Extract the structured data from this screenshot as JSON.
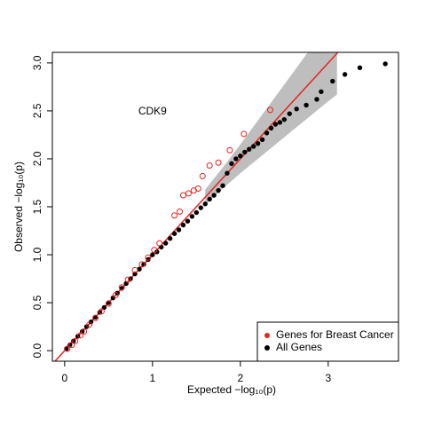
{
  "chart_data": {
    "type": "scatter",
    "xlabel": "Expected  −log₁₀(p)",
    "ylabel": "Observed  −log₁₀(p)",
    "annotation": {
      "text": "CDK9",
      "x": 1.0,
      "y": 2.49
    },
    "xlim": [
      -0.14,
      3.8
    ],
    "ylim": [
      -0.11,
      3.11
    ],
    "xticks": [
      0,
      1,
      2,
      3
    ],
    "yticks": [
      {
        "value": 0,
        "label": "0.0"
      },
      0.5,
      {
        "value": 1,
        "label": "1.0"
      },
      1.5,
      {
        "value": 2,
        "label": "2.0"
      },
      2.5,
      {
        "value": 3,
        "label": "3.0"
      }
    ],
    "legend": "bottom-right",
    "reference_line": {
      "slope": 1,
      "intercept": 0,
      "color": "#e8231f"
    },
    "band": {
      "color": "#bebebe",
      "x": [
        1.6,
        1.8,
        2.0,
        2.2,
        2.4,
        2.6,
        2.8,
        3.0,
        3.1
      ],
      "lower": [
        1.52,
        1.69,
        1.85,
        2.0,
        2.15,
        2.3,
        2.45,
        2.6,
        2.67
      ],
      "upper": [
        1.68,
        1.91,
        2.15,
        2.4,
        2.65,
        2.9,
        3.15,
        3.4,
        3.5
      ]
    },
    "series": [
      {
        "name": "All Genes",
        "color": "#000000",
        "marker": "filled",
        "x": [
          0.02,
          0.06,
          0.1,
          0.15,
          0.2,
          0.25,
          0.3,
          0.35,
          0.4,
          0.45,
          0.5,
          0.55,
          0.6,
          0.65,
          0.7,
          0.75,
          0.8,
          0.85,
          0.9,
          0.95,
          1.0,
          1.05,
          1.1,
          1.15,
          1.2,
          1.25,
          1.3,
          1.35,
          1.4,
          1.45,
          1.5,
          1.55,
          1.6,
          1.65,
          1.7,
          1.75,
          1.8,
          1.85,
          1.9,
          1.95,
          2.0,
          2.05,
          2.1,
          2.15,
          2.2,
          2.25,
          2.3,
          2.35,
          2.4,
          2.45,
          2.5,
          2.56,
          2.64,
          2.75,
          2.87,
          2.92,
          3.05,
          3.19,
          3.36,
          3.65
        ],
        "values": [
          0.02,
          0.06,
          0.1,
          0.15,
          0.2,
          0.25,
          0.3,
          0.35,
          0.4,
          0.45,
          0.5,
          0.55,
          0.6,
          0.65,
          0.7,
          0.75,
          0.8,
          0.85,
          0.9,
          0.95,
          1.0,
          1.03,
          1.08,
          1.12,
          1.17,
          1.22,
          1.26,
          1.31,
          1.35,
          1.4,
          1.44,
          1.49,
          1.53,
          1.58,
          1.62,
          1.67,
          1.72,
          1.85,
          1.95,
          2.0,
          2.03,
          2.07,
          2.1,
          2.13,
          2.16,
          2.2,
          2.27,
          2.32,
          2.36,
          2.38,
          2.41,
          2.47,
          2.52,
          2.56,
          2.62,
          2.7,
          2.81,
          2.88,
          2.95,
          2.99
        ]
      },
      {
        "name": "Genes for Breast Cancer",
        "color": "#e8231f",
        "marker": "open",
        "x": [
          0.03,
          0.08,
          0.12,
          0.18,
          0.22,
          0.28,
          0.35,
          0.42,
          0.5,
          0.58,
          0.65,
          0.72,
          0.8,
          0.88,
          0.95,
          1.02,
          1.08,
          1.25,
          1.31,
          1.35,
          1.41,
          1.47,
          1.52,
          1.57,
          1.65,
          1.75,
          1.88,
          2.04,
          2.34
        ],
        "values": [
          0.02,
          0.06,
          0.1,
          0.16,
          0.2,
          0.27,
          0.34,
          0.41,
          0.49,
          0.58,
          0.66,
          0.74,
          0.84,
          0.9,
          0.97,
          1.05,
          1.12,
          1.41,
          1.45,
          1.62,
          1.64,
          1.67,
          1.69,
          1.82,
          1.93,
          1.96,
          2.09,
          2.26,
          2.51
        ]
      }
    ]
  }
}
